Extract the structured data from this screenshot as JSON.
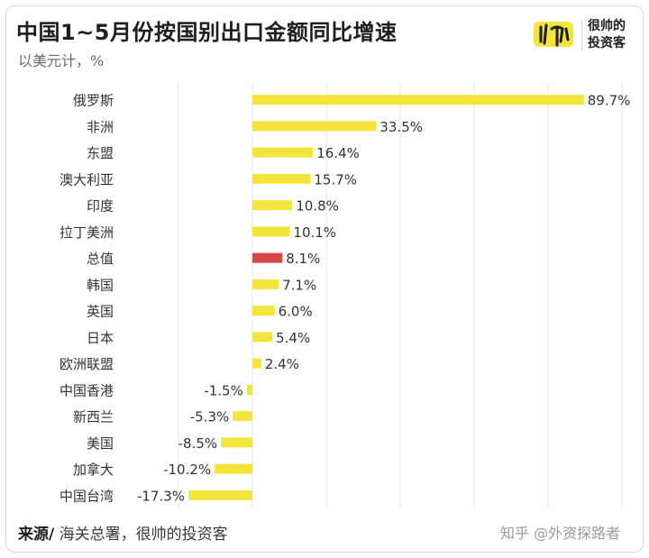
{
  "header": {
    "title": "中国1~5月份按国别出口金额同比增速",
    "subtitle": "以美元计，%"
  },
  "logo": {
    "line1": "很帅的",
    "line2": "投资客"
  },
  "footer": {
    "source_lead": "来源/",
    "source_text": " 海关总署，很帅的投资客"
  },
  "watermark": "知乎 @外资探路者",
  "colors": {
    "bar": "#f2e43a",
    "highlight": "#d84545",
    "grid": "#e3e3e3"
  },
  "chart_data": {
    "type": "bar",
    "orientation": "horizontal",
    "categories": [
      "俄罗斯",
      "非洲",
      "东盟",
      "澳大利亚",
      "印度",
      "拉丁美洲",
      "总值",
      "韩国",
      "英国",
      "日本",
      "欧洲联盟",
      "中国香港",
      "新西兰",
      "美国",
      "加拿大",
      "中国台湾"
    ],
    "values": [
      89.7,
      33.5,
      16.4,
      15.7,
      10.8,
      10.1,
      8.1,
      7.1,
      6.0,
      5.4,
      2.4,
      -1.5,
      -5.3,
      -8.5,
      -10.2,
      -17.3
    ],
    "labels": [
      "89.7%",
      "33.5%",
      "16.4%",
      "15.7%",
      "10.8%",
      "10.1%",
      "8.1%",
      "7.1%",
      "6.0%",
      "5.4%",
      "2.4%",
      "-1.5%",
      "-5.3%",
      "-8.5%",
      "-10.2%",
      "-17.3%"
    ],
    "highlight_category": "总值",
    "xlim": [
      -20,
      100
    ],
    "grid": true
  }
}
